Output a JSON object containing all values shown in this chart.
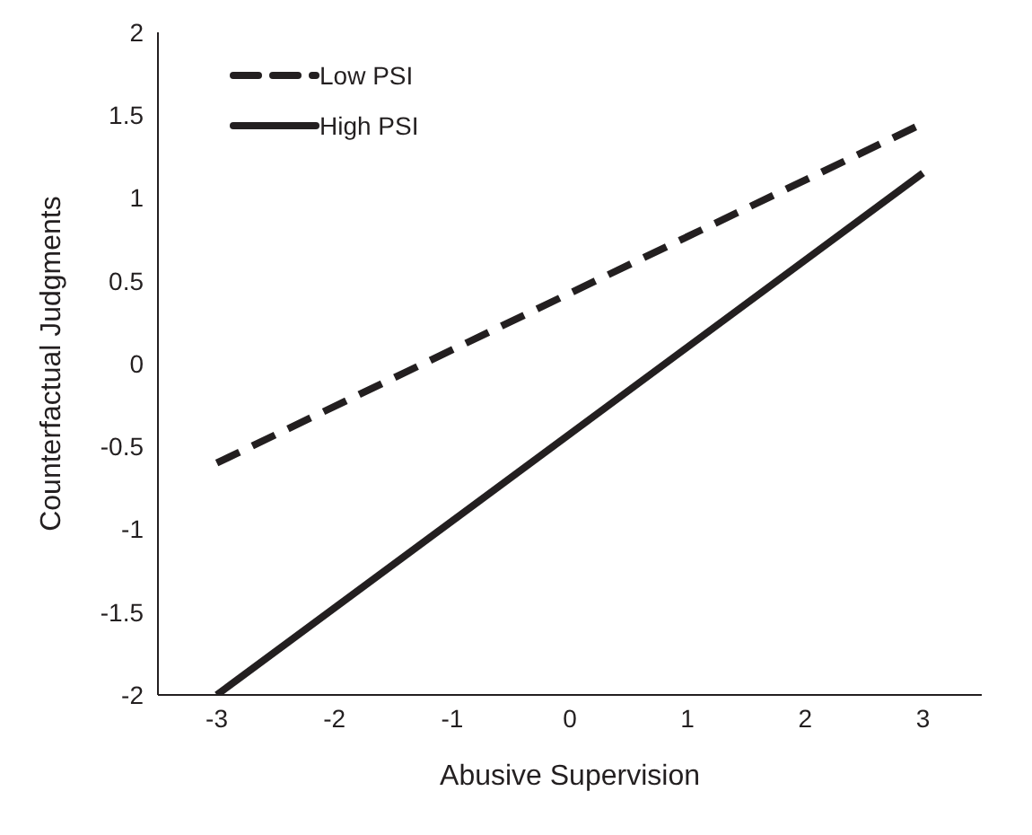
{
  "chart_data": {
    "type": "line",
    "xlabel": "Abusive Supervision",
    "ylabel": "Counterfactual Judgments",
    "x": [
      -3,
      3
    ],
    "xlim": [
      -3.5,
      3.5
    ],
    "xticks": [
      -3,
      -2,
      -1,
      0,
      1,
      2,
      3
    ],
    "ylim": [
      -2,
      2
    ],
    "yticks": [
      -2,
      -1.5,
      -1,
      -0.5,
      0,
      0.5,
      1,
      1.5,
      2
    ],
    "legend": "top left",
    "marker": "none",
    "series": [
      {
        "name": "Low PSI",
        "color": "#231f20",
        "values": [
          -0.6,
          1.45
        ],
        "line_style": "dashed"
      },
      {
        "name": "High PSI",
        "color": "#231f20",
        "values": [
          -2,
          1.15
        ],
        "line_style": "solid"
      }
    ]
  }
}
